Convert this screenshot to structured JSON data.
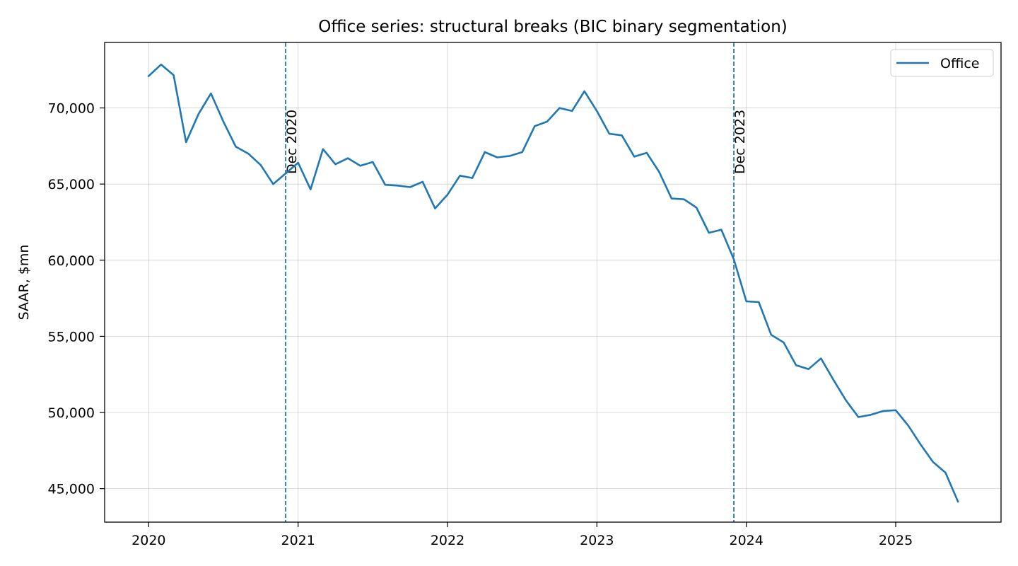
{
  "chart_data": {
    "type": "line",
    "title": "Office series: structural breaks (BIC binary segmentation)",
    "xlabel": "",
    "ylabel": "SAAR, $mn",
    "xlim": [
      "2019-09-15",
      "2025-09-15"
    ],
    "ylim": [
      42800,
      74300
    ],
    "x_ticks": [
      "2020",
      "2021",
      "2022",
      "2023",
      "2024",
      "2025"
    ],
    "y_ticks": [
      45000,
      50000,
      55000,
      60000,
      65000,
      70000
    ],
    "y_tick_labels": [
      "45,000",
      "50,000",
      "55,000",
      "60,000",
      "65,000",
      "70,000"
    ],
    "grid": true,
    "legend_position": "top-right",
    "series": [
      {
        "name": "Office",
        "color": "#1f77b4",
        "x": [
          "2020-01",
          "2020-02",
          "2020-03",
          "2020-04",
          "2020-05",
          "2020-06",
          "2020-07",
          "2020-08",
          "2020-09",
          "2020-10",
          "2020-11",
          "2020-12",
          "2021-01",
          "2021-02",
          "2021-03",
          "2021-04",
          "2021-05",
          "2021-06",
          "2021-07",
          "2021-08",
          "2021-09",
          "2021-10",
          "2021-11",
          "2021-12",
          "2022-01",
          "2022-02",
          "2022-03",
          "2022-04",
          "2022-05",
          "2022-06",
          "2022-07",
          "2022-08",
          "2022-09",
          "2022-10",
          "2022-11",
          "2022-12",
          "2023-01",
          "2023-02",
          "2023-03",
          "2023-04",
          "2023-05",
          "2023-06",
          "2023-07",
          "2023-08",
          "2023-09",
          "2023-10",
          "2023-11",
          "2023-12",
          "2024-01",
          "2024-02",
          "2024-03",
          "2024-04",
          "2024-05",
          "2024-06",
          "2024-07",
          "2024-08",
          "2024-09",
          "2024-10",
          "2024-11",
          "2024-12",
          "2025-01",
          "2025-02",
          "2025-03",
          "2025-04",
          "2025-05",
          "2025-06"
        ],
        "values": [
          72100,
          72850,
          72150,
          67750,
          69600,
          70950,
          69100,
          67450,
          67000,
          66250,
          65000,
          65700,
          66400,
          64650,
          67300,
          66300,
          66700,
          66200,
          66450,
          64950,
          64900,
          64800,
          65150,
          63400,
          64300,
          65550,
          65400,
          67100,
          66750,
          66850,
          67100,
          68800,
          69100,
          70000,
          69800,
          71100,
          69800,
          68300,
          68200,
          66800,
          67050,
          65800,
          64050,
          64000,
          63450,
          61800,
          62000,
          60050,
          57300,
          57250,
          55100,
          54600,
          53100,
          52850,
          53550,
          52150,
          50800,
          49700,
          49850,
          50100,
          50150,
          49150,
          47900,
          46750,
          46050,
          44150
        ]
      }
    ],
    "breaks": [
      {
        "date": "2020-12",
        "label": "Dec 2020"
      },
      {
        "date": "2023-12",
        "label": "Dec 2023"
      }
    ]
  }
}
